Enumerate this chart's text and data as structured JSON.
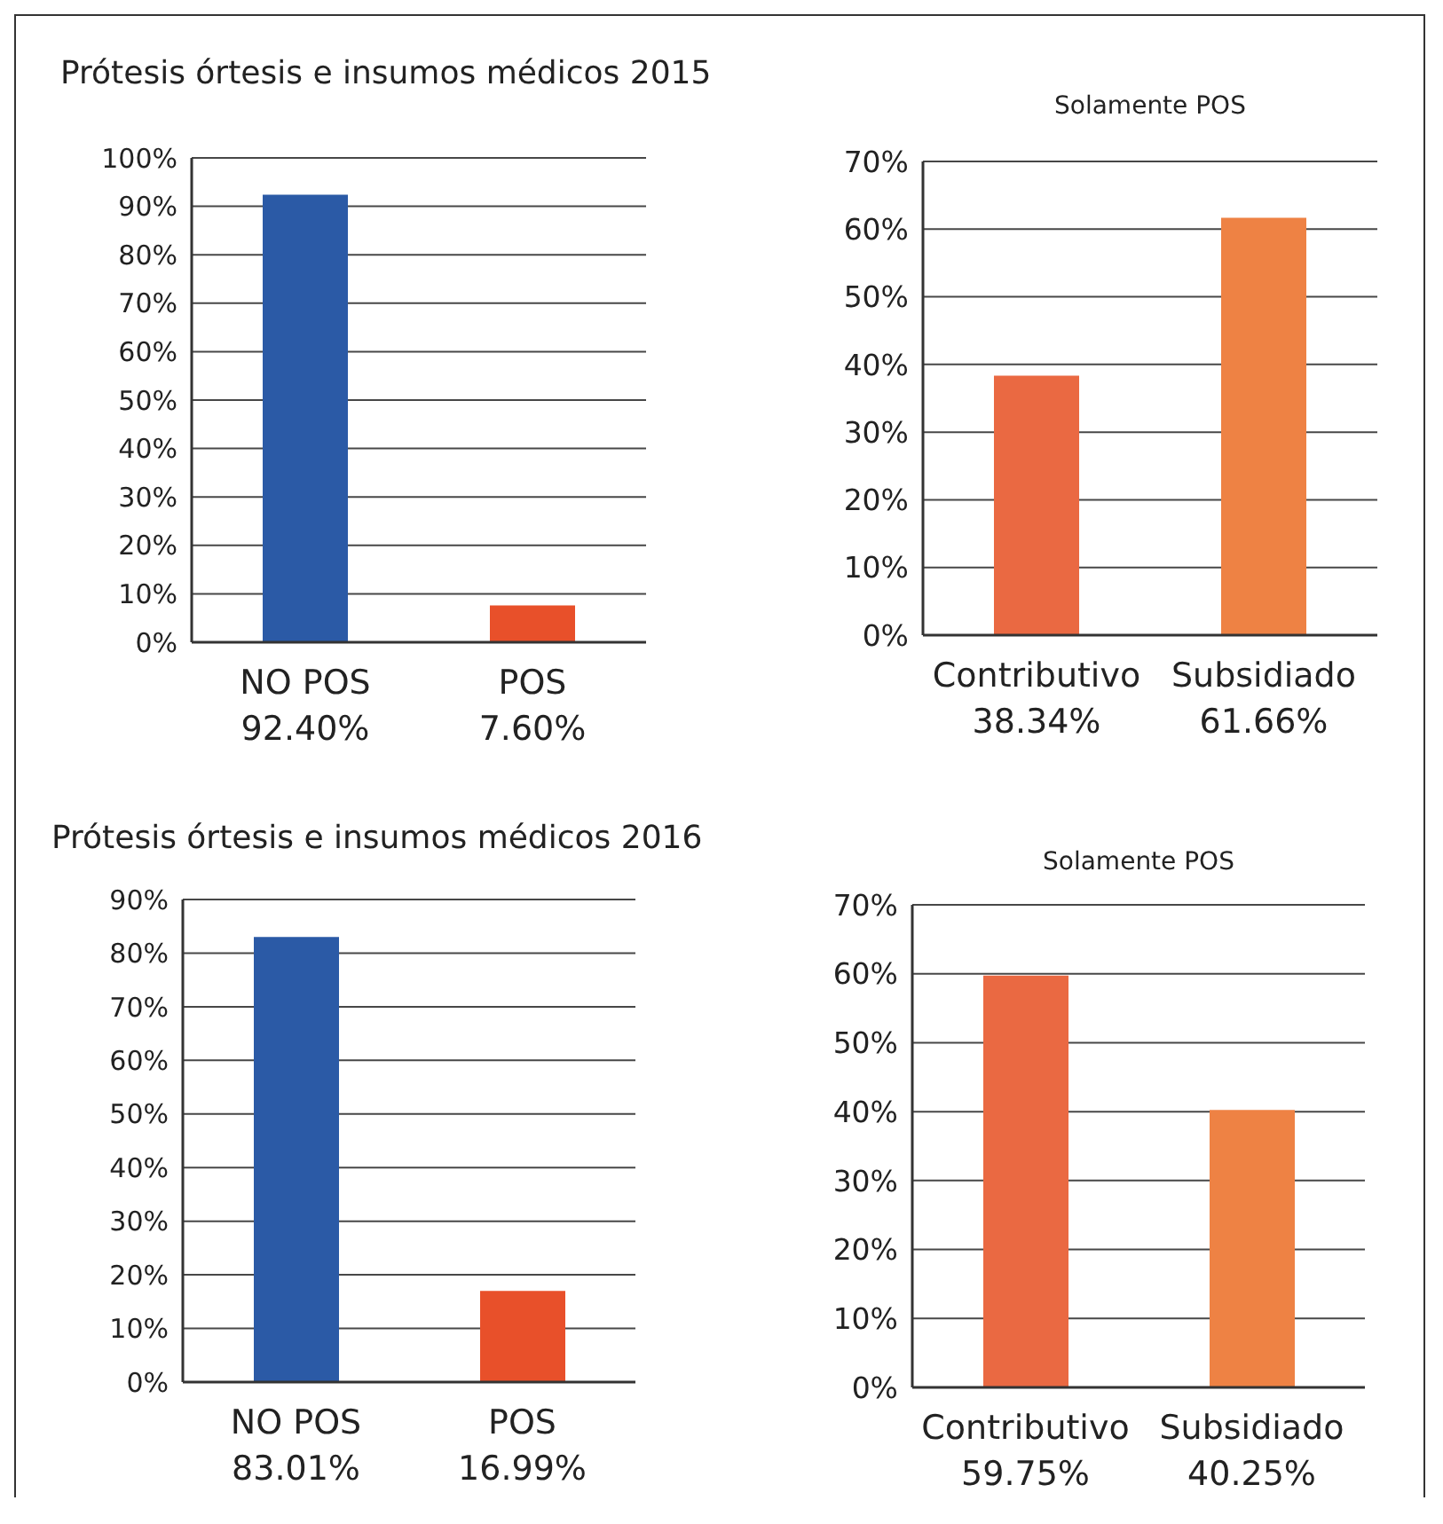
{
  "chart_data": [
    {
      "type": "bar",
      "title": "Prótesis órtesis e insumos médicos 2015",
      "categories": [
        "NO POS",
        "POS"
      ],
      "values": [
        92.4,
        7.6
      ],
      "value_labels": [
        "92.40%",
        "7.60%"
      ],
      "colors": [
        "#2b5aa6",
        "#e8502a"
      ],
      "ylim": [
        0,
        100
      ],
      "yticks": [
        {
          "value": 0,
          "label": "0%"
        },
        {
          "value": 10,
          "label": "10%"
        },
        {
          "value": 20,
          "label": "20%"
        },
        {
          "value": 30,
          "label": "30%"
        },
        {
          "value": 40,
          "label": "40%"
        },
        {
          "value": 50,
          "label": "50%"
        },
        {
          "value": 60,
          "label": "60%"
        },
        {
          "value": 70,
          "label": "70%"
        },
        {
          "value": 80,
          "label": "80%"
        },
        {
          "value": 90,
          "label": "90%"
        },
        {
          "value": 100,
          "label": "100%"
        }
      ],
      "grid": "y"
    },
    {
      "type": "bar",
      "title": "Solamente POS",
      "categories": [
        "Contributivo",
        "Subsidiado"
      ],
      "values": [
        38.34,
        61.66
      ],
      "value_labels": [
        "38.34%",
        "61.66%"
      ],
      "colors": [
        "#ea6942",
        "#ee8244"
      ],
      "ylim": [
        0,
        70
      ],
      "yticks": [
        {
          "value": 0,
          "label": "0%"
        },
        {
          "value": 10,
          "label": "10%"
        },
        {
          "value": 20,
          "label": "20%"
        },
        {
          "value": 30,
          "label": "30%"
        },
        {
          "value": 40,
          "label": "40%"
        },
        {
          "value": 50,
          "label": "50%"
        },
        {
          "value": 60,
          "label": "60%"
        },
        {
          "value": 70,
          "label": "70%"
        }
      ],
      "grid": "y"
    },
    {
      "type": "bar",
      "title": "Prótesis órtesis e insumos médicos 2016",
      "categories": [
        "NO POS",
        "POS"
      ],
      "values": [
        83.01,
        16.99
      ],
      "value_labels": [
        "83.01%",
        "16.99%"
      ],
      "colors": [
        "#2b5aa6",
        "#e8502a"
      ],
      "ylim": [
        0,
        90
      ],
      "yticks": [
        {
          "value": 0,
          "label": "0%"
        },
        {
          "value": 10,
          "label": "10%"
        },
        {
          "value": 20,
          "label": "20%"
        },
        {
          "value": 30,
          "label": "30%"
        },
        {
          "value": 40,
          "label": "40%"
        },
        {
          "value": 50,
          "label": "50%"
        },
        {
          "value": 60,
          "label": "60%"
        },
        {
          "value": 70,
          "label": "70%"
        },
        {
          "value": 80,
          "label": "80%"
        },
        {
          "value": 90,
          "label": "90%"
        }
      ],
      "grid": "y"
    },
    {
      "type": "bar",
      "title": "Solamente POS",
      "categories": [
        "Contributivo",
        "Subsidiado"
      ],
      "values": [
        59.75,
        40.25
      ],
      "value_labels": [
        "59.75%",
        "40.25%"
      ],
      "colors": [
        "#ea6942",
        "#ee8244"
      ],
      "ylim": [
        0,
        70
      ],
      "yticks": [
        {
          "value": 0,
          "label": "0%"
        },
        {
          "value": 10,
          "label": "10%"
        },
        {
          "value": 20,
          "label": "20%"
        },
        {
          "value": 30,
          "label": "30%"
        },
        {
          "value": 40,
          "label": "40%"
        },
        {
          "value": 50,
          "label": "50%"
        },
        {
          "value": 60,
          "label": "60%"
        },
        {
          "value": 70,
          "label": "70%"
        }
      ],
      "grid": "y"
    }
  ]
}
